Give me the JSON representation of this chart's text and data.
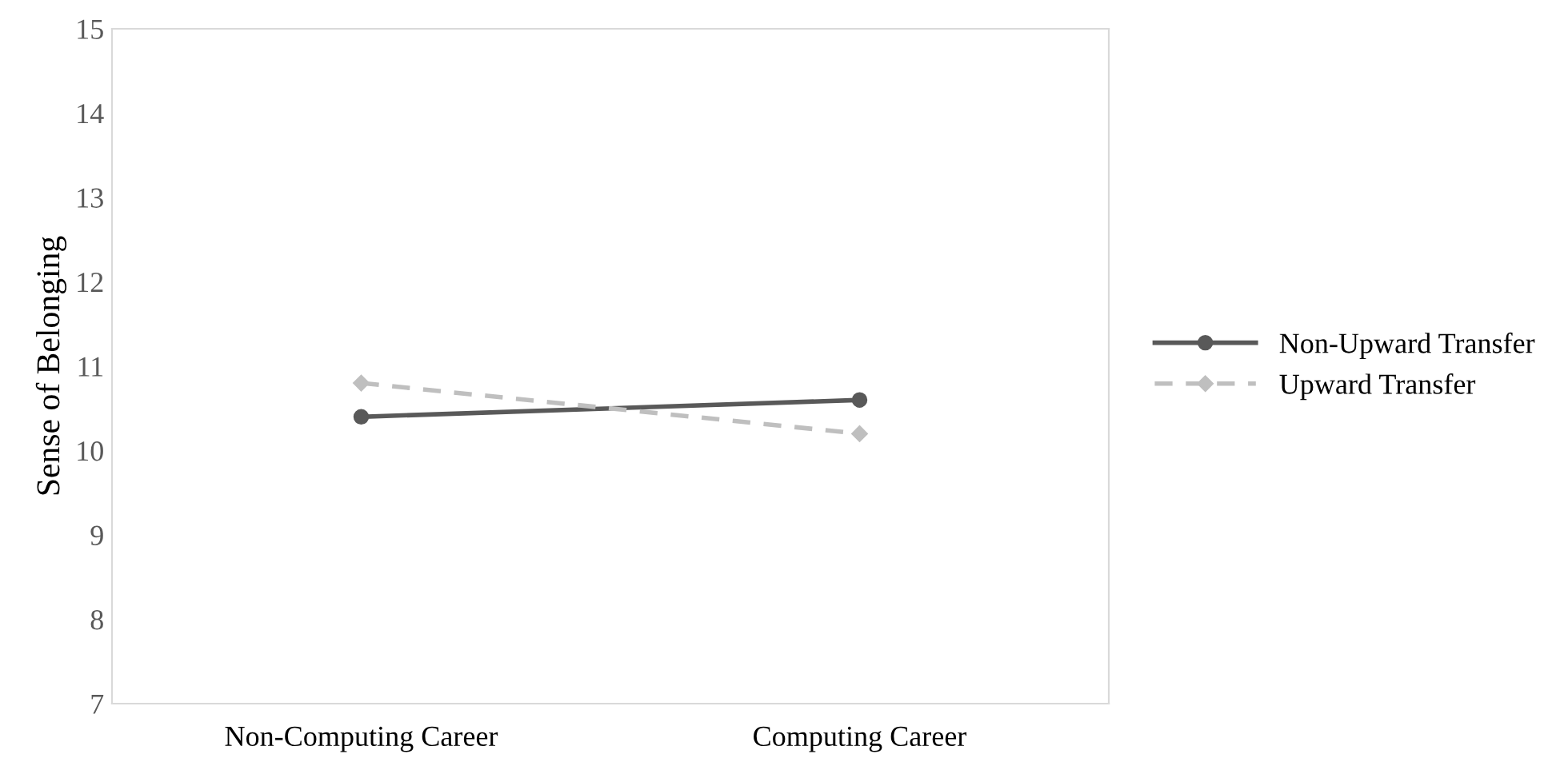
{
  "chart_data": {
    "type": "line",
    "ylabel": "Sense of Belonging",
    "categories": [
      "Non-Computing Career",
      "Computing Career"
    ],
    "series": [
      {
        "name": "Non-Upward Transfer",
        "color": "#595959",
        "values": [
          10.4,
          10.6
        ],
        "marker": "circle",
        "line_style": "solid"
      },
      {
        "name": "Upward Transfer",
        "color": "#bfbfbf",
        "values": [
          10.8,
          10.2
        ],
        "marker": "diamond",
        "line_style": "dashed"
      }
    ],
    "ylim": [
      7,
      15
    ],
    "yticks": [
      7,
      8,
      9,
      10,
      11,
      12,
      13,
      14,
      15
    ],
    "grid": false,
    "legend": "right"
  }
}
